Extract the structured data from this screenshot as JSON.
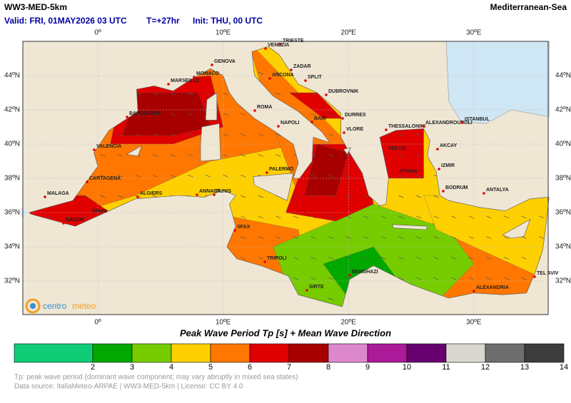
{
  "header": {
    "title": "WW3-MED-5km",
    "valid": "Valid: FRI, 01MAY2026 03 UTC",
    "forecast": "T=+27hr",
    "init": "Init: THU, 00 UTC",
    "region": "Mediterranean-Sea"
  },
  "map": {
    "lon_labels": [
      "0º",
      "10ºE",
      "20ºE",
      "30ºE"
    ],
    "lat_labels": [
      "44ºN",
      "42ºN",
      "40ºN",
      "38ºN",
      "36ºN",
      "34ºN",
      "32ºN"
    ],
    "cities": [
      "TRIESTE",
      "VENEZIA",
      "GENOVA",
      "MONACO",
      "MARSEILLE",
      "ZADAR",
      "ANCONA",
      "SPLIT",
      "DUBROVNIK",
      "ROMA",
      "BARCELONA",
      "NAPOLI",
      "BARI",
      "DURRES",
      "VLORE",
      "THESSALONIKI",
      "ALEXANDROUPOLI",
      "ISTANBUL",
      "VALENCIA",
      "VOLOS",
      "AKCAY",
      "PALERMO",
      "ATHINA",
      "IZMIR",
      "CARTAGENA",
      "ALGIERS",
      "ANNABA",
      "TUNIS",
      "BODRUM",
      "ANTALYA",
      "MALAGA",
      "ORAN",
      "NADOR",
      "SFAX",
      "TRIPOLI",
      "BENGHAZI",
      "TEL AVIV",
      "ALEXANDRIA",
      "SIRTE"
    ],
    "logo": [
      "centro",
      "meteo"
    ]
  },
  "legend": {
    "title": "Peak Wave Period Tp [s]  +  Mean Wave Direction",
    "ticks": [
      2,
      3,
      4,
      5,
      6,
      7,
      8,
      9,
      10,
      11,
      12,
      13,
      14
    ],
    "colors": [
      "#11cc77",
      "#00a800",
      "#77cc00",
      "#ffd000",
      "#ff7700",
      "#e00000",
      "#a80000",
      "#dd88cc",
      "#aa1a99",
      "#66006f",
      "#d8d8d0",
      "#6e6e6e",
      "#3c3c3c"
    ]
  },
  "footnote": [
    "Tp: peak wave period (dominant wave component; may vary abruptly in mixed sea states)",
    "Data source: ItaliaMeteo-ARPAE | WW3-MED-5km | License: CC BY 4.0"
  ]
}
